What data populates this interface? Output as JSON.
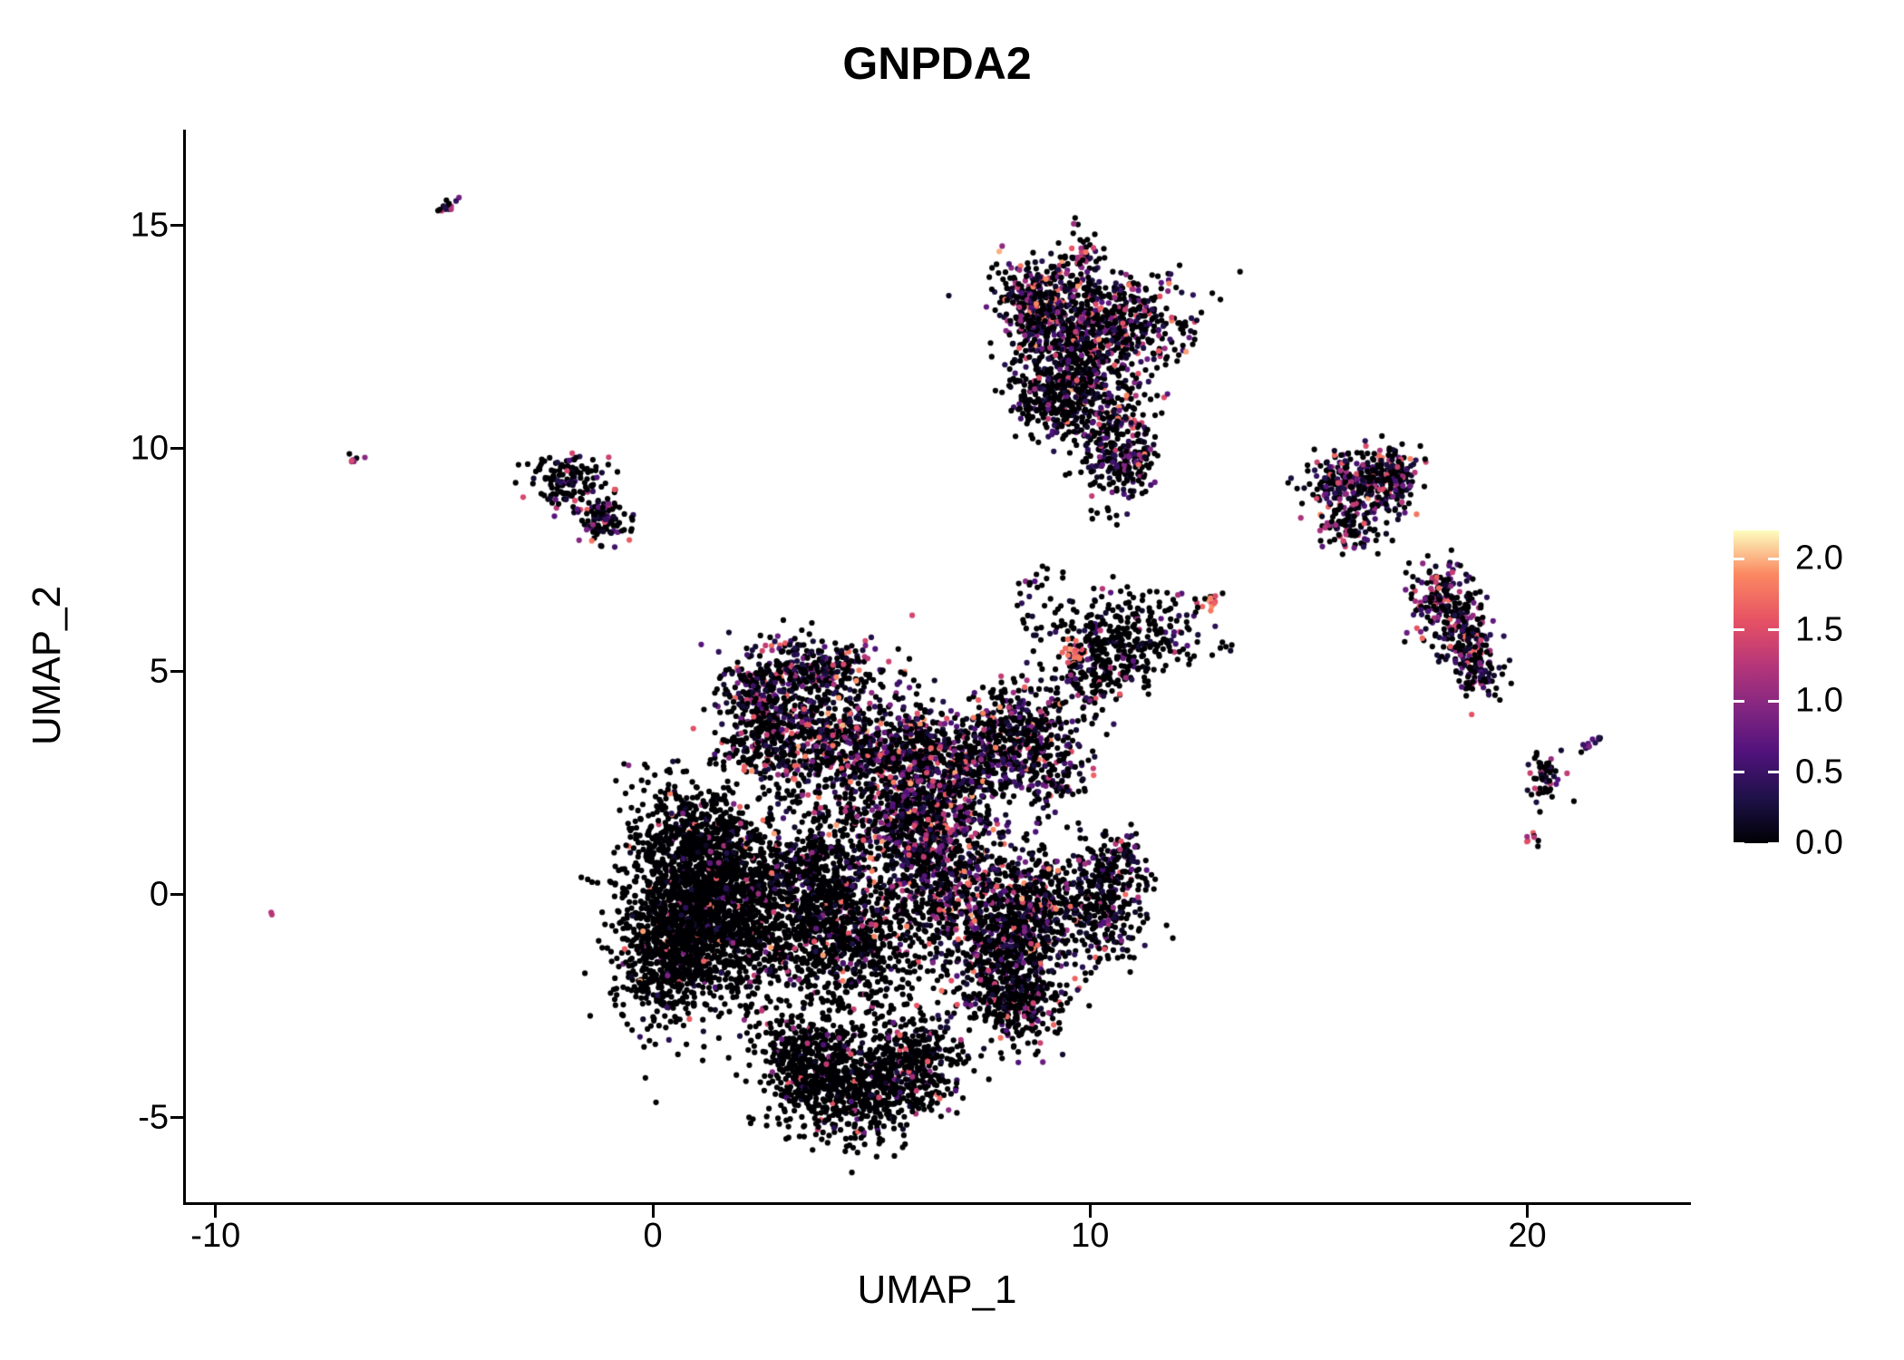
{
  "chart_data": {
    "type": "scatter",
    "title": "GNPDA2",
    "xlabel": "UMAP_1",
    "ylabel": "UMAP_2",
    "xlim": [
      -10.7,
      23.7
    ],
    "ylim": [
      -6.9,
      17.15
    ],
    "x_ticks": [
      -10,
      0,
      10,
      20
    ],
    "x_tick_labels": [
      "-10",
      "0",
      "10",
      "20"
    ],
    "y_ticks": [
      -5,
      0,
      5,
      10,
      15
    ],
    "y_tick_labels": [
      "-5",
      "0",
      "5",
      "10",
      "15"
    ],
    "grid": false,
    "point_radius_px": 3.1,
    "point_color_zero": "#000004",
    "colorbar": {
      "position": "right",
      "colormap": "magma",
      "vmin": 0.0,
      "vmax": 2.2,
      "ticks": [
        0.0,
        0.5,
        1.0,
        1.5,
        2.0
      ],
      "tick_labels": [
        "0.0",
        "0.5",
        "1.0",
        "1.5",
        "2.0"
      ],
      "stops": [
        [
          0.0,
          "#000004"
        ],
        [
          0.14,
          "#1D1147"
        ],
        [
          0.29,
          "#51127C"
        ],
        [
          0.43,
          "#822681"
        ],
        [
          0.57,
          "#B63679"
        ],
        [
          0.71,
          "#E65164"
        ],
        [
          0.86,
          "#FB8861"
        ],
        [
          1.0,
          "#FCFDBF"
        ]
      ]
    },
    "clusters": [
      {
        "id": "central-left-black-1",
        "kind": "gauss",
        "cx": 0.9,
        "cy": 0.2,
        "sx": 0.8,
        "sy": 0.9,
        "n": 900,
        "p0": 0.93,
        "emin": 0.15,
        "emax": 2.0,
        "skew": 2.2
      },
      {
        "id": "central-left-black-2",
        "kind": "gauss",
        "cx": 0.4,
        "cy": -1.3,
        "sx": 0.6,
        "sy": 0.85,
        "n": 700,
        "p0": 0.95,
        "emin": 0.15,
        "emax": 2.0,
        "skew": 2.2
      },
      {
        "id": "central-left-black-3",
        "kind": "gauss",
        "cx": 1.8,
        "cy": -0.6,
        "sx": 0.8,
        "sy": 0.9,
        "n": 800,
        "p0": 0.88,
        "emin": 0.15,
        "emax": 2.0,
        "skew": 2.2
      },
      {
        "id": "central-left-black-4",
        "kind": "gauss",
        "cx": 1.3,
        "cy": 1.4,
        "sx": 0.55,
        "sy": 0.55,
        "n": 300,
        "p0": 0.85,
        "emin": 0.15,
        "emax": 2.0,
        "skew": 2.2
      },
      {
        "id": "central-left-sparse",
        "kind": "box",
        "x0": -0.7,
        "x1": 1.0,
        "y0": 0.8,
        "y1": 3.0,
        "n": 60,
        "p0": 0.9,
        "emin": 0.15,
        "emax": 1.2,
        "skew": 2.2
      },
      {
        "id": "central-top-bump",
        "kind": "gauss",
        "cx": 3.6,
        "cy": 5.0,
        "sx": 0.85,
        "sy": 0.38,
        "n": 380,
        "p0": 0.5,
        "emin": 0.15,
        "emax": 2.0,
        "skew": 2.2
      },
      {
        "id": "central-top-bump-left",
        "kind": "gauss",
        "cx": 2.3,
        "cy": 4.55,
        "sx": 0.33,
        "sy": 0.28,
        "n": 90,
        "p0": 0.6,
        "emin": 0.15,
        "emax": 1.6,
        "skew": 2.2
      },
      {
        "id": "central-mid-band-1",
        "kind": "gauss",
        "cx": 2.6,
        "cy": 3.6,
        "sx": 0.6,
        "sy": 0.5,
        "n": 350,
        "p0": 0.65,
        "emin": 0.15,
        "emax": 2.0,
        "skew": 2.2
      },
      {
        "id": "central-mid-band-2",
        "kind": "gauss",
        "cx": 4.3,
        "cy": 3.4,
        "sx": 0.8,
        "sy": 0.6,
        "n": 450,
        "p0": 0.6,
        "emin": 0.15,
        "emax": 2.0,
        "skew": 2.2
      },
      {
        "id": "central-mid-band-3",
        "kind": "gauss",
        "cx": 5.9,
        "cy": 3.3,
        "sx": 0.6,
        "sy": 0.5,
        "n": 300,
        "p0": 0.55,
        "emin": 0.15,
        "emax": 2.0,
        "skew": 2.2
      },
      {
        "id": "central-purple-1",
        "kind": "gauss",
        "cx": 5.9,
        "cy": 2.0,
        "sx": 0.7,
        "sy": 0.8,
        "n": 600,
        "p0": 0.6,
        "emin": 0.15,
        "emax": 2.0,
        "skew": 2.2
      },
      {
        "id": "central-purple-2",
        "kind": "gauss",
        "cx": 6.7,
        "cy": 0.8,
        "sx": 0.65,
        "sy": 1.0,
        "n": 650,
        "p0": 0.55,
        "emin": 0.15,
        "emax": 2.0,
        "skew": 2.2
      },
      {
        "id": "central-purple-3",
        "kind": "gauss",
        "cx": 7.5,
        "cy": 2.9,
        "sx": 0.5,
        "sy": 0.5,
        "n": 250,
        "p0": 0.6,
        "emin": 0.15,
        "emax": 2.0,
        "skew": 2.2
      },
      {
        "id": "central-core-1",
        "kind": "gauss",
        "cx": 3.6,
        "cy": 0.3,
        "sx": 0.8,
        "sy": 1.0,
        "n": 700,
        "p0": 0.85,
        "emin": 0.15,
        "emax": 2.0,
        "skew": 2.2
      },
      {
        "id": "central-core-2",
        "kind": "gauss",
        "cx": 4.6,
        "cy": -1.0,
        "sx": 0.9,
        "sy": 0.9,
        "n": 700,
        "p0": 0.8,
        "emin": 0.15,
        "emax": 2.0,
        "skew": 2.2
      },
      {
        "id": "central-bottom-1",
        "kind": "gauss",
        "cx": 4.6,
        "cy": -4.3,
        "sx": 0.9,
        "sy": 0.6,
        "n": 700,
        "p0": 0.88,
        "emin": 0.15,
        "emax": 1.8,
        "skew": 2.2
      },
      {
        "id": "central-bottom-2",
        "kind": "gauss",
        "cx": 5.9,
        "cy": -3.7,
        "sx": 0.6,
        "sy": 0.5,
        "n": 350,
        "p0": 0.85,
        "emin": 0.15,
        "emax": 1.8,
        "skew": 2.2
      },
      {
        "id": "central-bottom-3",
        "kind": "gauss",
        "cx": 3.4,
        "cy": -3.6,
        "sx": 0.5,
        "sy": 0.5,
        "n": 300,
        "p0": 0.9,
        "emin": 0.15,
        "emax": 1.8,
        "skew": 2.2
      },
      {
        "id": "central-right-1",
        "kind": "gauss",
        "cx": 7.9,
        "cy": -1.2,
        "sx": 0.7,
        "sy": 0.9,
        "n": 600,
        "p0": 0.7,
        "emin": 0.15,
        "emax": 2.0,
        "skew": 2.2
      },
      {
        "id": "central-right-2",
        "kind": "gauss",
        "cx": 8.8,
        "cy": -0.3,
        "sx": 0.6,
        "sy": 0.7,
        "n": 400,
        "p0": 0.65,
        "emin": 0.15,
        "emax": 2.0,
        "skew": 2.2
      },
      {
        "id": "central-right-3",
        "kind": "gauss",
        "cx": 8.4,
        "cy": -2.4,
        "sx": 0.5,
        "sy": 0.5,
        "n": 250,
        "p0": 0.75,
        "emin": 0.15,
        "emax": 1.8,
        "skew": 2.2
      },
      {
        "id": "central-right-lobe",
        "kind": "gauss",
        "cx": 10.3,
        "cy": -0.2,
        "sx": 0.5,
        "sy": 0.7,
        "n": 300,
        "p0": 0.7,
        "emin": 0.15,
        "emax": 1.8,
        "skew": 2.2
      },
      {
        "id": "central-right-lobe-2",
        "kind": "gauss",
        "cx": 10.7,
        "cy": 0.8,
        "sx": 0.3,
        "sy": 0.3,
        "n": 80,
        "p0": 0.6,
        "emin": 0.15,
        "emax": 1.6,
        "skew": 2.2
      },
      {
        "id": "top-cluster-1",
        "kind": "gauss",
        "cx": 8.9,
        "cy": 13.3,
        "sx": 0.6,
        "sy": 0.45,
        "n": 380,
        "p0": 0.5,
        "emin": 0.15,
        "emax": 2.0,
        "skew": 2.2
      },
      {
        "id": "top-cluster-2",
        "kind": "gauss",
        "cx": 10.6,
        "cy": 12.9,
        "sx": 0.8,
        "sy": 0.5,
        "n": 420,
        "p0": 0.55,
        "emin": 0.15,
        "emax": 2.0,
        "skew": 2.2
      },
      {
        "id": "top-cluster-3",
        "kind": "gauss",
        "cx": 9.6,
        "cy": 12.0,
        "sx": 0.8,
        "sy": 0.55,
        "n": 420,
        "p0": 0.6,
        "emin": 0.15,
        "emax": 2.0,
        "skew": 2.2
      },
      {
        "id": "top-cluster-black",
        "kind": "gauss",
        "cx": 9.3,
        "cy": 11.0,
        "sx": 0.55,
        "sy": 0.45,
        "n": 260,
        "p0": 0.8,
        "emin": 0.15,
        "emax": 1.6,
        "skew": 2.2
      },
      {
        "id": "top-cluster-tail-1",
        "kind": "gauss",
        "cx": 10.6,
        "cy": 10.4,
        "sx": 0.45,
        "sy": 0.6,
        "n": 220,
        "p0": 0.55,
        "emin": 0.15,
        "emax": 2.0,
        "skew": 2.2
      },
      {
        "id": "top-cluster-tail-2",
        "kind": "gauss",
        "cx": 10.9,
        "cy": 9.7,
        "sx": 0.3,
        "sy": 0.3,
        "n": 80,
        "p0": 0.6,
        "emin": 0.15,
        "emax": 1.6,
        "skew": 2.2
      },
      {
        "id": "top-cluster-cap",
        "kind": "gauss",
        "cx": 9.85,
        "cy": 14.35,
        "sx": 0.18,
        "sy": 0.28,
        "n": 45,
        "p0": 0.45,
        "emin": 0.15,
        "emax": 1.8,
        "skew": 2.2
      },
      {
        "id": "top-cluster-trail",
        "kind": "box",
        "x0": 10.0,
        "x1": 11.0,
        "y0": 8.2,
        "y1": 9.6,
        "n": 30,
        "p0": 0.7,
        "emin": 0.15,
        "emax": 1.4,
        "skew": 2.2
      },
      {
        "id": "ring-cluster-black",
        "kind": "gauss",
        "cx": 10.7,
        "cy": 5.7,
        "sx": 0.7,
        "sy": 0.5,
        "n": 300,
        "p0": 0.85,
        "emin": 0.15,
        "emax": 1.6,
        "skew": 2.2
      },
      {
        "id": "ring-cluster-low",
        "kind": "gauss",
        "cx": 10.0,
        "cy": 4.9,
        "sx": 0.4,
        "sy": 0.4,
        "n": 120,
        "p0": 0.7,
        "emin": 0.15,
        "emax": 1.6,
        "skew": 2.2
      },
      {
        "id": "ring-hot-streak",
        "kind": "gauss",
        "cx": 9.6,
        "cy": 5.35,
        "sx": 0.12,
        "sy": 0.25,
        "n": 22,
        "p0": 0.1,
        "emin": 1.0,
        "emax": 2.0,
        "skew": 0.7
      },
      {
        "id": "bridge-sparse-right",
        "kind": "box",
        "x0": 11.3,
        "x1": 13.3,
        "y0": 5.3,
        "y1": 6.8,
        "n": 35,
        "p0": 0.6,
        "emin": 0.15,
        "emax": 1.4,
        "skew": 2.2
      },
      {
        "id": "bridge-sparse-left",
        "kind": "box",
        "x0": 8.3,
        "x1": 9.4,
        "y0": 5.8,
        "y1": 7.4,
        "n": 30,
        "p0": 0.75,
        "emin": 0.15,
        "emax": 1.2,
        "skew": 2.2
      },
      {
        "id": "mid-right-cluster",
        "kind": "gauss",
        "cx": 8.4,
        "cy": 3.7,
        "sx": 0.75,
        "sy": 0.55,
        "n": 380,
        "p0": 0.6,
        "emin": 0.15,
        "emax": 2.0,
        "skew": 2.2
      },
      {
        "id": "mid-right-cluster-2",
        "kind": "gauss",
        "cx": 9.0,
        "cy": 2.7,
        "sx": 0.4,
        "sy": 0.35,
        "n": 110,
        "p0": 0.65,
        "emin": 0.15,
        "emax": 1.8,
        "skew": 2.2
      },
      {
        "id": "right-cluster-a1",
        "kind": "gauss",
        "cx": 16.1,
        "cy": 9.2,
        "sx": 0.55,
        "sy": 0.4,
        "n": 300,
        "p0": 0.45,
        "emin": 0.15,
        "emax": 2.0,
        "skew": 2.2
      },
      {
        "id": "right-cluster-a2",
        "kind": "gauss",
        "cx": 16.9,
        "cy": 9.45,
        "sx": 0.35,
        "sy": 0.28,
        "n": 100,
        "p0": 0.5,
        "emin": 0.15,
        "emax": 2.0,
        "skew": 2.2
      },
      {
        "id": "right-cluster-a3",
        "kind": "gauss",
        "cx": 15.9,
        "cy": 8.25,
        "sx": 0.35,
        "sy": 0.3,
        "n": 90,
        "p0": 0.6,
        "emin": 0.15,
        "emax": 1.6,
        "skew": 2.2
      },
      {
        "id": "right-cluster-b1",
        "kind": "gauss",
        "cx": 18.0,
        "cy": 6.7,
        "sx": 0.35,
        "sy": 0.4,
        "n": 160,
        "p0": 0.5,
        "emin": 0.15,
        "emax": 1.8,
        "skew": 2.2
      },
      {
        "id": "right-cluster-b2",
        "kind": "gauss",
        "cx": 18.5,
        "cy": 5.9,
        "sx": 0.35,
        "sy": 0.45,
        "n": 160,
        "p0": 0.45,
        "emin": 0.15,
        "emax": 1.8,
        "skew": 2.2
      },
      {
        "id": "right-cluster-b3",
        "kind": "gauss",
        "cx": 18.9,
        "cy": 5.0,
        "sx": 0.25,
        "sy": 0.3,
        "n": 80,
        "p0": 0.5,
        "emin": 0.15,
        "emax": 1.8,
        "skew": 2.2
      },
      {
        "id": "small-right-c1",
        "kind": "gauss",
        "cx": 20.35,
        "cy": 2.7,
        "sx": 0.22,
        "sy": 0.35,
        "n": 55,
        "p0": 0.6,
        "emin": 0.15,
        "emax": 1.4,
        "skew": 2.2
      },
      {
        "id": "small-right-dash",
        "kind": "line",
        "x0": 21.25,
        "y0": 3.25,
        "x1": 21.7,
        "y1": 3.5,
        "n": 14,
        "p0": 0.3,
        "emin": 0.3,
        "emax": 1.0,
        "skew": 1.5,
        "jitter": 0.05
      },
      {
        "id": "small-right-pink",
        "kind": "gauss",
        "cx": 20.15,
        "cy": 1.25,
        "sx": 0.1,
        "sy": 0.12,
        "n": 8,
        "p0": 0.2,
        "emin": 0.9,
        "emax": 1.6,
        "skew": 0.8
      },
      {
        "id": "orange-doublet",
        "kind": "gauss",
        "cx": 12.75,
        "cy": 6.55,
        "sx": 0.12,
        "sy": 0.1,
        "n": 9,
        "p0": 0.0,
        "emin": 1.4,
        "emax": 2.0,
        "skew": 0.7
      },
      {
        "id": "left-small-black",
        "kind": "gauss",
        "cx": -2.0,
        "cy": 9.3,
        "sx": 0.42,
        "sy": 0.3,
        "n": 130,
        "p0": 0.8,
        "emin": 0.15,
        "emax": 1.6,
        "skew": 2.2
      },
      {
        "id": "left-small-mixed",
        "kind": "gauss",
        "cx": -1.2,
        "cy": 8.35,
        "sx": 0.35,
        "sy": 0.28,
        "n": 110,
        "p0": 0.55,
        "emin": 0.15,
        "emax": 1.8,
        "skew": 2.2
      },
      {
        "id": "far-left-dash",
        "kind": "line",
        "x0": -4.9,
        "y0": 15.3,
        "x1": -4.5,
        "y1": 15.55,
        "n": 16,
        "p0": 0.45,
        "emin": 0.2,
        "emax": 1.4,
        "skew": 1.5,
        "jitter": 0.05
      },
      {
        "id": "far-left-pink-pair",
        "kind": "gauss",
        "cx": -6.85,
        "cy": 9.75,
        "sx": 0.1,
        "sy": 0.12,
        "n": 7,
        "p0": 0.3,
        "emin": 0.8,
        "emax": 1.5,
        "skew": 0.8
      },
      {
        "id": "far-left-singleton",
        "kind": "gauss",
        "cx": -8.72,
        "cy": -0.45,
        "sx": 0.05,
        "sy": 0.05,
        "n": 2,
        "p0": 0.0,
        "emin": 1.2,
        "emax": 1.5,
        "skew": 0.8
      }
    ]
  }
}
